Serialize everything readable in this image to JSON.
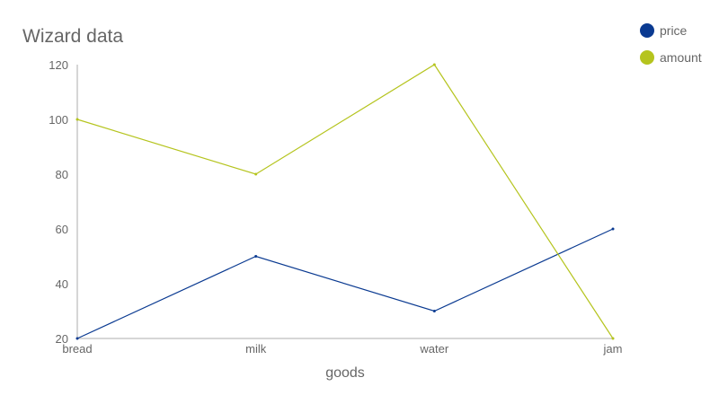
{
  "chart_data": {
    "type": "line",
    "title": "Wizard data",
    "xlabel": "goods",
    "ylabel": "",
    "categories": [
      "bread",
      "milk",
      "water",
      "jam"
    ],
    "ylim": [
      20,
      120
    ],
    "yticks": [
      20,
      40,
      60,
      80,
      100,
      120
    ],
    "grid": false,
    "legend_position": "top-right",
    "series": [
      {
        "name": "price",
        "color": "#0a3a91",
        "values": [
          20,
          50,
          30,
          60
        ]
      },
      {
        "name": "amount",
        "color": "#b5c41e",
        "values": [
          100,
          80,
          120,
          20
        ]
      }
    ]
  }
}
